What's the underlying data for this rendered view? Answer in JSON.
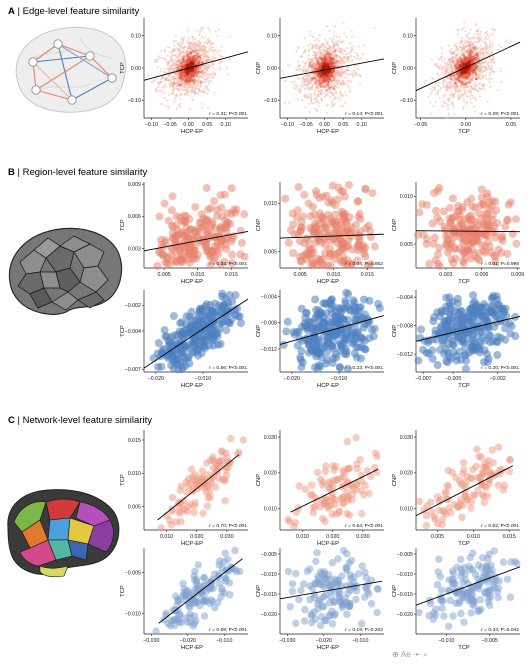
{
  "sections": [
    {
      "letter": "A",
      "text": "Edge-level feature similarity"
    },
    {
      "letter": "B",
      "text": "Region-level feature similarity"
    },
    {
      "letter": "C",
      "text": "Network-level feature similarity"
    }
  ],
  "watermark": "⊕ Ае ·•· ⌕",
  "chart_data": [
    {
      "id": "A1",
      "type": "scatter",
      "density": true,
      "xlabel": "HCP-EP",
      "ylabel": "TCP",
      "xlim": [
        -0.12,
        0.16
      ],
      "ylim": [
        -0.155,
        0.155
      ],
      "xticks": [
        -0.1,
        -0.05,
        0.0,
        0.05,
        0.1
      ],
      "yticks": [
        -0.1,
        0.0,
        0.1
      ],
      "xtick_labels": [
        "−0.10",
        "−0.05",
        "0.00",
        "0.05",
        "0.10"
      ],
      "ytick_labels": [
        "−0.10",
        "0.00",
        "0.10"
      ],
      "stat": "r = 0.31; P<0.001",
      "r": 0.31,
      "line": [
        [
          -0.12,
          -0.038
        ],
        [
          0.16,
          0.05
        ]
      ],
      "color": "#d9452b"
    },
    {
      "id": "A2",
      "type": "scatter",
      "density": true,
      "xlabel": "HCP-EP",
      "ylabel": "CNP",
      "xlim": [
        -0.12,
        0.16
      ],
      "ylim": [
        -0.155,
        0.155
      ],
      "xticks": [
        -0.1,
        -0.05,
        0.0,
        0.05,
        0.1
      ],
      "yticks": [
        -0.1,
        0.0,
        0.1
      ],
      "xtick_labels": [
        "−0.10",
        "−0.05",
        "0.00",
        "0.05",
        "0.10"
      ],
      "ytick_labels": [
        "−0.10",
        "0.00",
        "0.10"
      ],
      "stat": "r = 0.14; P<0.001",
      "r": 0.14,
      "line": [
        [
          -0.12,
          -0.032
        ],
        [
          0.16,
          0.028
        ]
      ],
      "color": "#d9452b"
    },
    {
      "id": "A3",
      "type": "scatter",
      "density": true,
      "xlabel": "TCP",
      "ylabel": "CNP",
      "xlim": [
        -0.055,
        0.06
      ],
      "ylim": [
        -0.155,
        0.155
      ],
      "xticks": [
        -0.05,
        0.0,
        0.05
      ],
      "yticks": [
        -0.1,
        0.0,
        0.1
      ],
      "xtick_labels": [
        "−0.05",
        "0.00",
        "0.05"
      ],
      "ytick_labels": [
        "−0.10",
        "0.00",
        "0.10"
      ],
      "stat": "r = 0.29; P<0.001",
      "r": 0.29,
      "line": [
        [
          -0.055,
          -0.07
        ],
        [
          0.06,
          0.08
        ]
      ],
      "color": "#d9452b"
    },
    {
      "id": "B1",
      "type": "scatter",
      "xlabel": "HCP-EP",
      "ylabel": "TCP",
      "xlim": [
        0.002,
        0.0175
      ],
      "ylim": [
        0.0012,
        0.0092
      ],
      "xticks": [
        0.005,
        0.01,
        0.015
      ],
      "yticks": [
        0.003,
        0.006,
        0.009
      ],
      "xtick_labels": [
        "0.005",
        "0.010",
        "0.015"
      ],
      "ytick_labels": [
        "0.003",
        "0.006",
        "0.009"
      ],
      "stat": "r = 0.24; P<0.001",
      "r": 0.24,
      "line": [
        [
          0.002,
          0.0028
        ],
        [
          0.0175,
          0.0046
        ]
      ],
      "color": "#e8826b"
    },
    {
      "id": "B2",
      "type": "scatter",
      "xlabel": "HCP-EP",
      "ylabel": "CNP",
      "xlim": [
        0.002,
        0.0175
      ],
      "ylim": [
        0.0033,
        0.0122
      ],
      "xticks": [
        0.005,
        0.01,
        0.015
      ],
      "yticks": [
        0.005,
        0.01
      ],
      "xtick_labels": [
        "0.005",
        "0.010",
        "0.015"
      ],
      "ytick_labels": [
        "0.005",
        "0.010"
      ],
      "stat": "r = 0.04; P=0.952",
      "r": 0.04,
      "line": [
        [
          0.002,
          0.0064
        ],
        [
          0.0175,
          0.0068
        ]
      ],
      "color": "#e8826b"
    },
    {
      "id": "B3",
      "type": "scatter",
      "xlabel": "TCP",
      "ylabel": "CNP",
      "xlim": [
        0.0005,
        0.0092
      ],
      "ylim": [
        0.0025,
        0.0115
      ],
      "xticks": [
        0.003,
        0.006,
        0.009
      ],
      "yticks": [
        0.005,
        0.01
      ],
      "xtick_labels": [
        "0.003",
        "0.006",
        "0.009"
      ],
      "ytick_labels": [
        "0.005",
        "0.010"
      ],
      "stat": "r = 0.01; P=0.998",
      "r": 0.01,
      "line": [
        [
          0.0005,
          0.0064
        ],
        [
          0.0092,
          0.0063
        ]
      ],
      "color": "#e8826b"
    },
    {
      "id": "B4",
      "type": "scatter",
      "xlabel": "HCP-EP",
      "ylabel": "TCP",
      "xlim": [
        -0.0225,
        -0.0005
      ],
      "ylim": [
        -0.0072,
        -0.0008
      ],
      "xticks": [
        -0.02,
        -0.01
      ],
      "yticks": [
        -0.007,
        -0.004,
        -0.002
      ],
      "xtick_labels": [
        "−0.020",
        "−0.010"
      ],
      "ytick_labels": [
        "−0.007",
        "−0.004",
        "−0.002"
      ],
      "stat": "r = 0.56; P<0.001",
      "r": 0.56,
      "line": [
        [
          -0.0225,
          -0.0069
        ],
        [
          -0.0005,
          -0.0015
        ]
      ],
      "color": "#4d7fc0"
    },
    {
      "id": "B5",
      "type": "scatter",
      "xlabel": "HCP-EP",
      "ylabel": "CNP",
      "xlim": [
        -0.0225,
        -0.0005
      ],
      "ylim": [
        -0.0155,
        -0.003
      ],
      "xticks": [
        -0.02,
        -0.01
      ],
      "yticks": [
        -0.012,
        -0.008,
        -0.004
      ],
      "xtick_labels": [
        "−0.020",
        "−0.010"
      ],
      "ytick_labels": [
        "−0.012",
        "−0.008",
        "−0.004"
      ],
      "stat": "r = 0.23; P<0.001",
      "r": 0.23,
      "line": [
        [
          -0.0225,
          -0.0113
        ],
        [
          -0.0005,
          -0.0069
        ]
      ],
      "color": "#4d7fc0"
    },
    {
      "id": "B6",
      "type": "scatter",
      "xlabel": "TCP",
      "ylabel": "CNP",
      "xlim": [
        -0.0075,
        -0.0005
      ],
      "ylim": [
        -0.0145,
        -0.003
      ],
      "xticks": [
        -0.007,
        -0.005,
        -0.002
      ],
      "yticks": [
        -0.012,
        -0.008,
        -0.004
      ],
      "xtick_labels": [
        "−0.007",
        "−0.005",
        "−0.002"
      ],
      "ytick_labels": [
        "−0.012",
        "−0.008",
        "−0.004"
      ],
      "stat": "r = 0.20; P<0.001",
      "r": 0.2,
      "line": [
        [
          -0.0075,
          -0.0102
        ],
        [
          -0.0005,
          -0.0067
        ]
      ],
      "color": "#4d7fc0"
    },
    {
      "id": "C1",
      "type": "scatter",
      "xlabel": "HCP-EP",
      "ylabel": "TCP",
      "xlim": [
        0.0025,
        0.037
      ],
      "ylim": [
        0.0015,
        0.0165
      ],
      "xticks": [
        0.01,
        0.02,
        0.03
      ],
      "yticks": [
        0.005,
        0.01,
        0.015
      ],
      "xtick_labels": [
        "0.010",
        "0.020",
        "0.030"
      ],
      "ytick_labels": [
        "0.005",
        "0.010",
        "0.015"
      ],
      "stat": "r = 0.70; P<0.001",
      "r": 0.7,
      "line": [
        [
          0.007,
          0.003
        ],
        [
          0.034,
          0.0128
        ]
      ],
      "color": "#ee9a84"
    },
    {
      "id": "C2",
      "type": "scatter",
      "xlabel": "HCP-EP",
      "ylabel": "CNP",
      "xlim": [
        0.0025,
        0.037
      ],
      "ylim": [
        0.004,
        0.032
      ],
      "xticks": [
        0.01,
        0.02,
        0.03
      ],
      "yticks": [
        0.01,
        0.02,
        0.03
      ],
      "xtick_labels": [
        "0.010",
        "0.020",
        "0.030"
      ],
      "ytick_labels": [
        "0.010",
        "0.020",
        "0.030"
      ],
      "stat": "r = 0.54; P<0.001",
      "r": 0.54,
      "line": [
        [
          0.006,
          0.009
        ],
        [
          0.035,
          0.021
        ]
      ],
      "color": "#ee9a84"
    },
    {
      "id": "C3",
      "type": "scatter",
      "xlabel": "TCP",
      "ylabel": "CNP",
      "xlim": [
        0.002,
        0.0165
      ],
      "ylim": [
        0.004,
        0.032
      ],
      "xticks": [
        0.005,
        0.01,
        0.015
      ],
      "yticks": [
        0.01,
        0.02,
        0.03
      ],
      "xtick_labels": [
        "0.005",
        "0.010",
        "0.015"
      ],
      "ytick_labels": [
        "0.010",
        "0.020",
        "0.030"
      ],
      "stat": "r = 0.62; P<0.001",
      "r": 0.62,
      "line": [
        [
          0.002,
          0.008
        ],
        [
          0.0155,
          0.022
        ]
      ],
      "color": "#ee9a84"
    },
    {
      "id": "C4",
      "type": "scatter",
      "xlabel": "HCP-EP",
      "ylabel": "TCP",
      "xlim": [
        -0.032,
        -0.0035
      ],
      "ylim": [
        -0.0125,
        -0.002
      ],
      "xticks": [
        -0.03,
        -0.02,
        -0.01
      ],
      "yticks": [
        -0.01,
        -0.005
      ],
      "xtick_labels": [
        "−0.030",
        "−0.020",
        "−0.010"
      ],
      "ytick_labels": [
        "−0.010",
        "−0.005"
      ],
      "stat": "r = 0.59; P<0.001",
      "r": 0.59,
      "line": [
        [
          -0.028,
          -0.0112
        ],
        [
          -0.005,
          -0.0033
        ]
      ],
      "color": "#7d9fcd"
    },
    {
      "id": "C5",
      "type": "scatter",
      "xlabel": "HCP-EP",
      "ylabel": "CNP",
      "xlim": [
        -0.032,
        -0.0035
      ],
      "ylim": [
        -0.025,
        -0.0035
      ],
      "xticks": [
        -0.03,
        -0.02,
        -0.01
      ],
      "yticks": [
        -0.02,
        -0.015,
        -0.01,
        -0.005
      ],
      "xtick_labels": [
        "−0.030",
        "−0.020",
        "−0.010"
      ],
      "ytick_labels": [
        "−0.020",
        "−0.015",
        "−0.010",
        "−0.005"
      ],
      "stat": "r = 0.19; P=0.202",
      "r": 0.19,
      "line": [
        [
          -0.032,
          -0.0162
        ],
        [
          -0.004,
          -0.0118
        ]
      ],
      "color": "#7d9fcd"
    },
    {
      "id": "C6",
      "type": "scatter",
      "xlabel": "TCP",
      "ylabel": "CNP",
      "xlim": [
        -0.0135,
        -0.0015
      ],
      "ylim": [
        -0.025,
        -0.0035
      ],
      "xticks": [
        -0.01,
        -0.005
      ],
      "yticks": [
        -0.02,
        -0.015,
        -0.01,
        -0.005
      ],
      "xtick_labels": [
        "−0.010",
        "−0.005"
      ],
      "ytick_labels": [
        "−0.020",
        "−0.015",
        "−0.010",
        "−0.005"
      ],
      "stat": "r = 0.34; P=0.042",
      "r": 0.34,
      "line": [
        [
          -0.0135,
          -0.0178
        ],
        [
          -0.0015,
          -0.0082
        ]
      ],
      "color": "#7d9fcd"
    }
  ]
}
